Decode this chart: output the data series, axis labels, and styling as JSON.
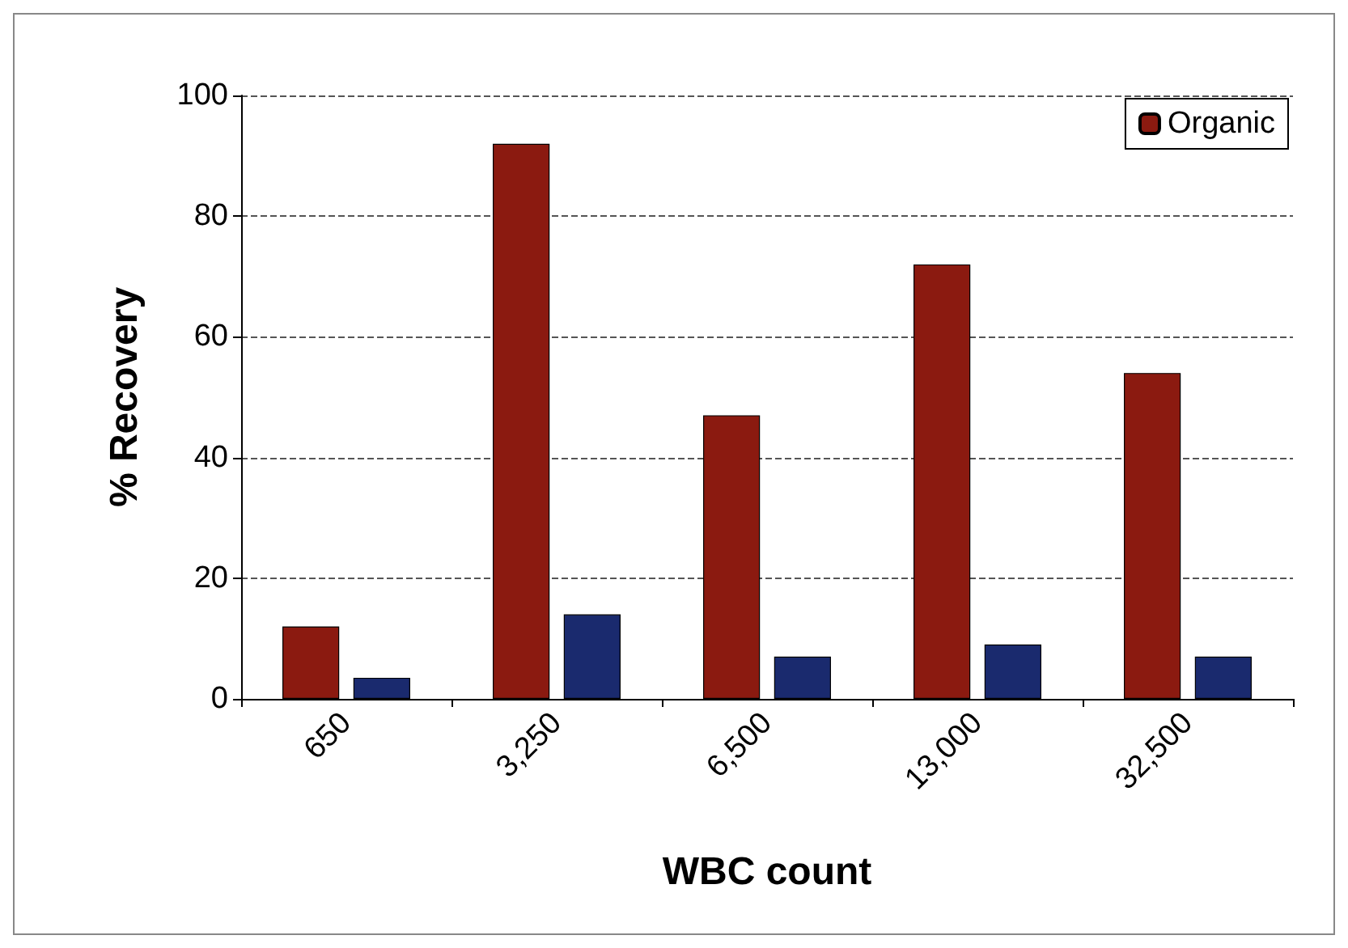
{
  "chart_data": {
    "type": "bar",
    "xlabel": "WBC count",
    "ylabel": "% Recovery",
    "categories": [
      "650",
      "3,250",
      "6,500",
      "13,000",
      "32,500"
    ],
    "series": [
      {
        "name": "Organic",
        "color": "#8b1a10",
        "values": [
          12,
          92,
          47,
          72,
          54
        ]
      },
      {
        "color": "#1a2a6e",
        "values": [
          3.5,
          14,
          7,
          9,
          7
        ]
      }
    ],
    "ylim": [
      0,
      100
    ],
    "yticks": [
      0,
      20,
      40,
      60,
      80,
      100
    ],
    "grid": "y",
    "legend": "top right"
  }
}
